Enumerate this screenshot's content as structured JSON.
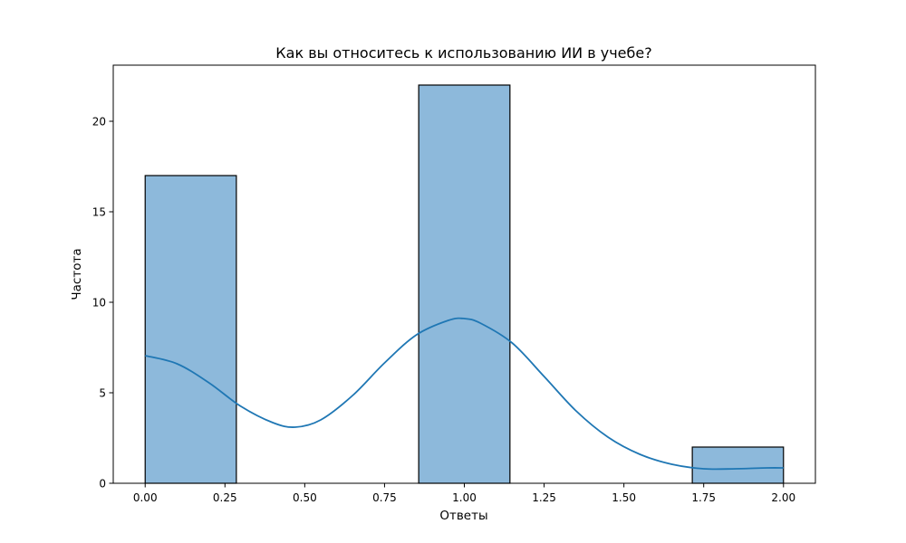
{
  "chart_data": {
    "type": "histogram",
    "title": "Как вы относитесь к использованию ИИ в учебе?",
    "xlabel": "Ответы",
    "ylabel": "Частота",
    "xlim": [
      -0.1,
      2.1
    ],
    "ylim": [
      0,
      23.1
    ],
    "x_ticks": [
      "0.00",
      "0.25",
      "0.50",
      "0.75",
      "1.00",
      "1.25",
      "1.50",
      "1.75",
      "2.00"
    ],
    "y_ticks": [
      "0",
      "5",
      "10",
      "15",
      "20"
    ],
    "bins": [
      {
        "x_start": 0.0,
        "x_end": 0.2857,
        "count": 17
      },
      {
        "x_start": 0.8571,
        "x_end": 1.1429,
        "count": 22
      },
      {
        "x_start": 1.7143,
        "x_end": 2.0,
        "count": 2
      }
    ],
    "kde_curve": {
      "x": [
        0.0,
        0.1,
        0.2,
        0.3,
        0.4,
        0.47,
        0.55,
        0.65,
        0.75,
        0.85,
        0.95,
        1.0,
        1.05,
        1.15,
        1.25,
        1.35,
        1.45,
        1.55,
        1.65,
        1.75,
        1.85,
        1.95,
        2.0
      ],
      "y": [
        7.05,
        6.6,
        5.55,
        4.25,
        3.35,
        3.1,
        3.5,
        4.85,
        6.65,
        8.2,
        9.0,
        9.1,
        8.85,
        7.75,
        5.9,
        4.0,
        2.55,
        1.6,
        1.05,
        0.8,
        0.8,
        0.85,
        0.85
      ]
    },
    "bar_color": "#8db9db",
    "bar_edge_color": "#000000",
    "kde_color": "#1f77b4",
    "grid": false,
    "legend": "none"
  }
}
